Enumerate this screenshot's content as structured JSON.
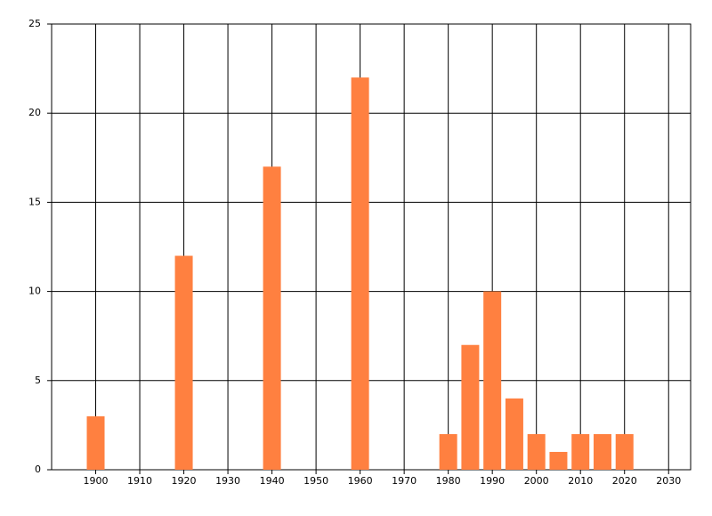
{
  "chart_data": {
    "type": "bar",
    "x": [
      1900,
      1920,
      1940,
      1960,
      1980,
      1985,
      1990,
      1995,
      2000,
      2005,
      2010,
      2015,
      2020
    ],
    "values": [
      3,
      12,
      17,
      22,
      2,
      7,
      10,
      4,
      2,
      1,
      2,
      2,
      2
    ],
    "color": "#ff8040",
    "xlim": [
      1890,
      2035
    ],
    "xticks": [
      1900,
      1910,
      1920,
      1930,
      1940,
      1950,
      1960,
      1970,
      1980,
      1990,
      2000,
      2010,
      2020,
      2030
    ],
    "ylim": [
      0,
      25
    ],
    "yticks": [
      0,
      5,
      10,
      15,
      20,
      25
    ],
    "grid": true
  }
}
